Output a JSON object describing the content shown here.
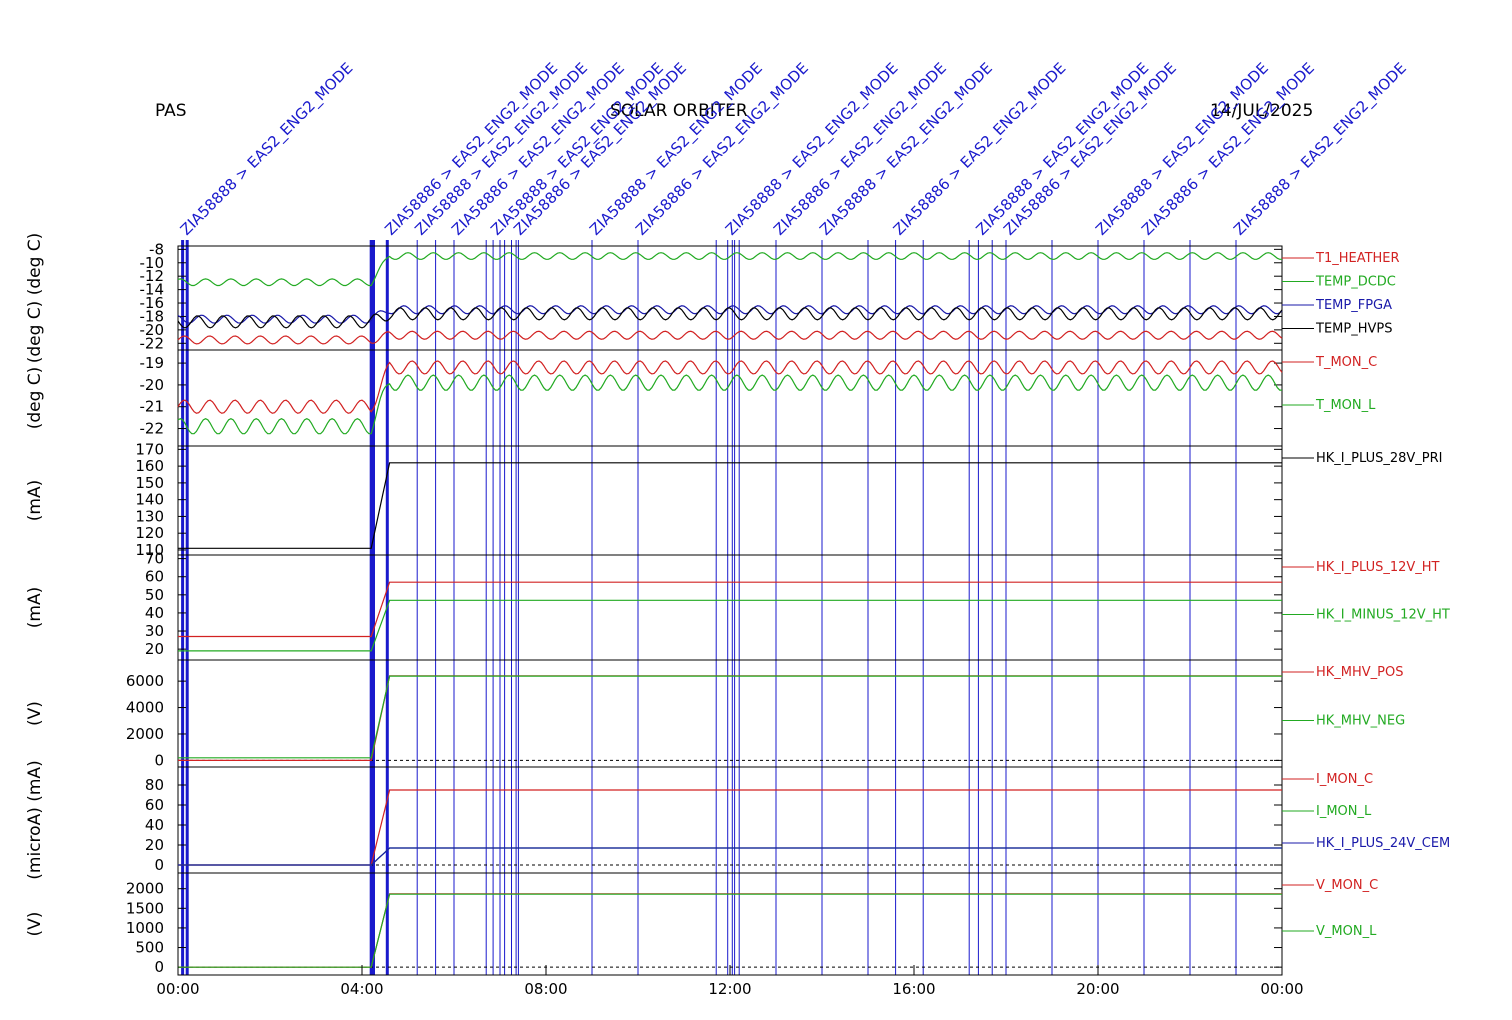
{
  "header": {
    "left": "PAS",
    "center": "SOLAR ORBITER",
    "date": "14/JUL/2025"
  },
  "colors": {
    "red": "#d22222",
    "green": "#22aa22",
    "blue": "#1a1aaa",
    "black": "#000000",
    "event": "#1a1acc"
  },
  "event_labels": [
    "ZIA58888 > EAS2_ENG2_MODE",
    "ZIA58886 > EAS2_ENG2_MODE",
    "ZIA58888 > EAS2_ENG2_MODE",
    "ZIA58886 > EAS2_ENG2_MODE",
    "ZIA58888 > EAS2_ENG2_MODE",
    "ZIA58886 > EAS2_ENG2_MODE",
    "ZIA58888 > EAS2_ENG2_MODE",
    "ZIA58886 > EAS2_ENG2_MODE",
    "ZIA58888 > EAS2_ENG2_MODE",
    "ZIA58886 > EAS2_ENG2_MODE",
    "ZIA58888 > EAS2_ENG2_MODE",
    "ZIA58886 > EAS2_ENG2_MODE",
    "ZIA58888 > EAS2_ENG2_MODE",
    "ZIA58886 > EAS2_ENG2_MODE",
    "ZIA58888 > EAS2_ENG2_MODE",
    "ZIA58886 > EAS2_ENG2_MODE",
    "ZIA58888 > EAS2_ENG2_MODE"
  ],
  "chart_data": {
    "type": "line",
    "x_ticks": [
      "00:00",
      "04:00",
      "08:00",
      "12:00",
      "16:00",
      "20:00",
      "00:00"
    ],
    "x_range_hours": [
      0,
      24
    ],
    "event_markers_hours": [
      0.1,
      0.2,
      4.2,
      4.25,
      4.55,
      5.2,
      5.6,
      6.0,
      6.7,
      6.85,
      7.0,
      7.1,
      7.25,
      7.35,
      7.4,
      9.0,
      10.0,
      11.7,
      11.95,
      12.05,
      12.1,
      12.2,
      13.0,
      14.0,
      15.0,
      15.6,
      16.2,
      17.2,
      17.4,
      17.7,
      18.0,
      19.0,
      20.0,
      21.0,
      22.0,
      23.0
    ],
    "panels": [
      {
        "ylabel": "(deg C) (deg C)",
        "ylim": [
          -23,
          -7.5
        ],
        "yticks": [
          "-8",
          "-10",
          "-12",
          "-14",
          "-16",
          "-18",
          "-20",
          "-22"
        ],
        "ytick_values": [
          -8,
          -10,
          -12,
          -14,
          -16,
          -18,
          -20,
          -22
        ],
        "series": [
          {
            "name": "T1_HEATHER",
            "color": "red",
            "before": -21.5,
            "after": -20.8,
            "amp": 0.6
          },
          {
            "name": "TEMP_DCDC",
            "color": "green",
            "before": -12.9,
            "after": -9.0,
            "amp": 0.5
          },
          {
            "name": "TEMP_FPGA",
            "color": "blue",
            "before": -18.4,
            "after": -17.0,
            "amp": 0.6
          },
          {
            "name": "TEMP_HVPS",
            "color": "black",
            "before": -18.8,
            "after": -17.6,
            "amp": 0.9
          }
        ]
      },
      {
        "ylabel": "(deg C)",
        "ylim": [
          -22.8,
          -18.4
        ],
        "yticks": [
          "-19",
          "-20",
          "-21",
          "-22"
        ],
        "ytick_values": [
          -19,
          -20,
          -21,
          -22
        ],
        "series": [
          {
            "name": "T_MON_C",
            "color": "red",
            "before": -21.0,
            "after": -19.2,
            "amp": 0.3
          },
          {
            "name": "T_MON_L",
            "color": "green",
            "before": -21.9,
            "after": -19.9,
            "amp": 0.35
          }
        ]
      },
      {
        "ylabel": "(mA)",
        "ylim": [
          107,
          172
        ],
        "yticks": [
          "170",
          "160",
          "150",
          "140",
          "130",
          "120",
          "110"
        ],
        "ytick_values": [
          170,
          160,
          150,
          140,
          130,
          120,
          110
        ],
        "series": [
          {
            "name": "HK_I_PLUS_28V_PRI",
            "color": "black",
            "before": 111,
            "after": 162,
            "amp": 0
          }
        ]
      },
      {
        "ylabel": "(mA)",
        "ylim": [
          14,
          72
        ],
        "yticks": [
          "70",
          "60",
          "50",
          "40",
          "30",
          "20"
        ],
        "ytick_values": [
          70,
          60,
          50,
          40,
          30,
          20
        ],
        "series": [
          {
            "name": "HK_I_PLUS_12V_HT",
            "color": "red",
            "before": 27,
            "after": 57,
            "amp": 0
          },
          {
            "name": "HK_I_MINUS_12V_HT",
            "color": "green",
            "before": 19,
            "after": 47,
            "amp": 0
          }
        ]
      },
      {
        "ylabel": "(V)",
        "ylim": [
          -500,
          7600
        ],
        "yticks": [
          "6000",
          "4000",
          "2000",
          "0"
        ],
        "ytick_values": [
          6000,
          4000,
          2000,
          0
        ],
        "series": [
          {
            "name": "HK_MHV_POS",
            "color": "red",
            "before": 0,
            "after": 6400,
            "amp": 0
          },
          {
            "name": "HK_MHV_NEG",
            "color": "green",
            "before": 200,
            "after": 6380,
            "amp": 0
          }
        ]
      },
      {
        "ylabel": "(microA) (mA)",
        "ylim": [
          -8,
          98
        ],
        "yticks": [
          "80",
          "60",
          "40",
          "20",
          "0"
        ],
        "ytick_values": [
          80,
          60,
          40,
          20,
          0
        ],
        "series": [
          {
            "name": "I_MON_C",
            "color": "red",
            "before": 0,
            "after": 75,
            "amp": 0
          },
          {
            "name": "I_MON_L",
            "color": "green",
            "before": 0,
            "after": 17,
            "amp": 0
          },
          {
            "name": "HK_I_PLUS_24V_CEM",
            "color": "blue",
            "before": 0,
            "after": 17,
            "amp": 0
          }
        ]
      },
      {
        "ylabel": "(V)",
        "ylim": [
          -200,
          2400
        ],
        "yticks": [
          "2000",
          "1500",
          "1000",
          "500",
          "0"
        ],
        "ytick_values": [
          2000,
          1500,
          1000,
          500,
          0
        ],
        "series": [
          {
            "name": "V_MON_C",
            "color": "red",
            "before": 0,
            "after": 1870,
            "amp": 0
          },
          {
            "name": "V_MON_L",
            "color": "green",
            "before": 0,
            "after": 1860,
            "amp": 0
          }
        ]
      }
    ],
    "grid": false,
    "legend": "right"
  }
}
